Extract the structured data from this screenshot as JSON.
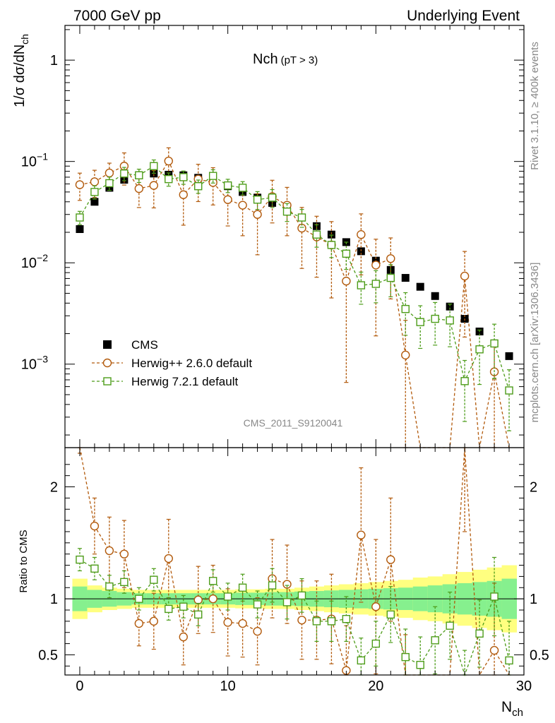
{
  "header": {
    "left": "7000 GeV pp",
    "right": "Underlying Event",
    "analysis_id": "CMS_2011_S9120041",
    "side_top": "Rivet 3.1.10, ≥ 400k events",
    "side_bottom": "mcplots.cern.ch [arXiv:1306.3436]"
  },
  "chart_data": {
    "type": "scatter",
    "title_main": "Nch",
    "title_sub": "(pT >  3)",
    "xlabel": "N",
    "xlabel_sub": "ch",
    "ylabel_main": "1/σ dσ/dN",
    "ylabel_sub": "ch",
    "ratio_ylabel": "Ratio to CMS",
    "xlim": [
      -1,
      30
    ],
    "x_ticks": [
      "0",
      "10",
      "20",
      "30"
    ],
    "ylim": [
      0.00015,
      2.2
    ],
    "y_scale": "log",
    "y_ticks": [
      {
        "base": "1",
        "exp": ""
      },
      {
        "base": "10",
        "exp": "−1"
      },
      {
        "base": "10",
        "exp": "−2"
      },
      {
        "base": "10",
        "exp": "−3"
      }
    ],
    "ratio_ylim": [
      0.32,
      2.35
    ],
    "ratio_ticks": [
      "2",
      "1",
      "0.5"
    ],
    "legend_position": "bottom-left",
    "x": [
      0,
      1,
      2,
      3,
      4,
      5,
      6,
      7,
      8,
      9,
      10,
      11,
      12,
      13,
      14,
      15,
      16,
      17,
      18,
      19,
      20,
      21,
      22,
      23,
      24,
      25,
      26,
      27,
      28,
      29
    ],
    "series": [
      {
        "name": "CMS",
        "color": "#000000",
        "marker": "filled-square",
        "values": [
          0.0215,
          0.04,
          0.055,
          0.066,
          0.073,
          0.076,
          0.074,
          0.073,
          0.069,
          0.064,
          0.057,
          0.05,
          0.044,
          0.039,
          0.033,
          0.028,
          0.023,
          0.019,
          0.016,
          0.013,
          0.0105,
          0.0085,
          0.0071,
          0.0058,
          0.0047,
          0.0037,
          0.0028,
          0.0021,
          0.0016,
          0.0012
        ],
        "band_inner": [
          0.11,
          0.08,
          0.07,
          0.06,
          0.05,
          0.05,
          0.05,
          0.05,
          0.05,
          0.05,
          0.05,
          0.055,
          0.055,
          0.06,
          0.06,
          0.065,
          0.07,
          0.075,
          0.08,
          0.085,
          0.09,
          0.095,
          0.1,
          0.11,
          0.12,
          0.13,
          0.14,
          0.15,
          0.16,
          0.18
        ],
        "band_outer": [
          0.18,
          0.12,
          0.1,
          0.09,
          0.08,
          0.08,
          0.08,
          0.08,
          0.08,
          0.08,
          0.08,
          0.085,
          0.085,
          0.09,
          0.09,
          0.1,
          0.11,
          0.12,
          0.13,
          0.14,
          0.15,
          0.16,
          0.17,
          0.19,
          0.2,
          0.22,
          0.24,
          0.26,
          0.28,
          0.3
        ]
      },
      {
        "name": "Herwig++ 2.6.0 default",
        "color": "#b25a0c",
        "marker": "open-circle",
        "values": [
          0.059,
          0.063,
          0.077,
          0.09,
          0.054,
          0.058,
          0.101,
          0.047,
          0.067,
          0.062,
          0.042,
          0.037,
          0.03,
          0.045,
          0.037,
          0.022,
          0.018,
          0.015,
          0.0066,
          0.019,
          0.0095,
          0.011,
          0.00123,
          null,
          null,
          null,
          0.0074,
          null,
          0.00084,
          null
        ],
        "err_rel": [
          0.3,
          0.3,
          0.25,
          0.35,
          0.35,
          0.4,
          0.35,
          0.5,
          0.4,
          0.4,
          0.45,
          0.5,
          0.6,
          0.45,
          0.5,
          0.6,
          0.6,
          0.7,
          0.9,
          0.6,
          0.8,
          0.6,
          1.2,
          1,
          1,
          1,
          0.75,
          1,
          0.9,
          1
        ],
        "ratio": [
          2.6,
          1.65,
          1.43,
          1.4,
          0.78,
          0.8,
          1.36,
          0.66,
          0.99,
          1.0,
          0.79,
          0.78,
          0.71,
          1.18,
          1.13,
          0.81,
          0.81,
          0.82,
          0.36,
          1.57,
          0.93,
          1.35,
          0.18,
          null,
          null,
          null,
          2.6,
          null,
          0.54,
          null
        ],
        "ratio_err": [
          0.3,
          0.25,
          0.3,
          0.3,
          0.2,
          0.25,
          0.35,
          0.25,
          0.3,
          0.3,
          0.3,
          0.3,
          0.3,
          0.35,
          0.35,
          0.35,
          0.35,
          0.4,
          0.4,
          0.6,
          0.6,
          0.55,
          0.5,
          1,
          1,
          1,
          1,
          1,
          0.6,
          1
        ]
      },
      {
        "name": "Herwig 7.2.1 default",
        "color": "#4d9c19",
        "marker": "open-square",
        "values": [
          0.028,
          0.05,
          0.061,
          0.076,
          0.073,
          0.09,
          0.067,
          0.07,
          0.057,
          0.072,
          0.058,
          0.055,
          0.042,
          0.044,
          0.032,
          0.028,
          0.019,
          0.015,
          0.0123,
          0.006,
          0.0062,
          0.0071,
          0.0035,
          0.0026,
          0.0028,
          0.0027,
          0.00068,
          0.0014,
          0.0016,
          0.00055
        ],
        "err_rel": [
          0.15,
          0.15,
          0.15,
          0.15,
          0.15,
          0.15,
          0.15,
          0.15,
          0.15,
          0.15,
          0.15,
          0.15,
          0.2,
          0.2,
          0.2,
          0.2,
          0.25,
          0.25,
          0.3,
          0.35,
          0.35,
          0.35,
          0.45,
          0.45,
          0.45,
          0.45,
          0.6,
          0.55,
          0.55,
          0.6
        ],
        "ratio": [
          1.35,
          1.27,
          1.11,
          1.15,
          1.0,
          1.17,
          0.91,
          0.93,
          0.86,
          1.16,
          1.02,
          1.1,
          0.95,
          1.12,
          0.97,
          1.03,
          0.8,
          0.8,
          0.82,
          0.45,
          0.6,
          0.86,
          0.48,
          0.41,
          0.63,
          0.76,
          0.24,
          0.69,
          1.02,
          0.45
        ],
        "ratio_err": [
          0.1,
          0.1,
          0.1,
          0.1,
          0.1,
          0.1,
          0.1,
          0.1,
          0.1,
          0.1,
          0.12,
          0.12,
          0.12,
          0.15,
          0.15,
          0.15,
          0.18,
          0.18,
          0.2,
          0.2,
          0.2,
          0.25,
          0.25,
          0.25,
          0.3,
          0.3,
          0.3,
          0.3,
          0.35,
          0.35
        ]
      }
    ]
  }
}
